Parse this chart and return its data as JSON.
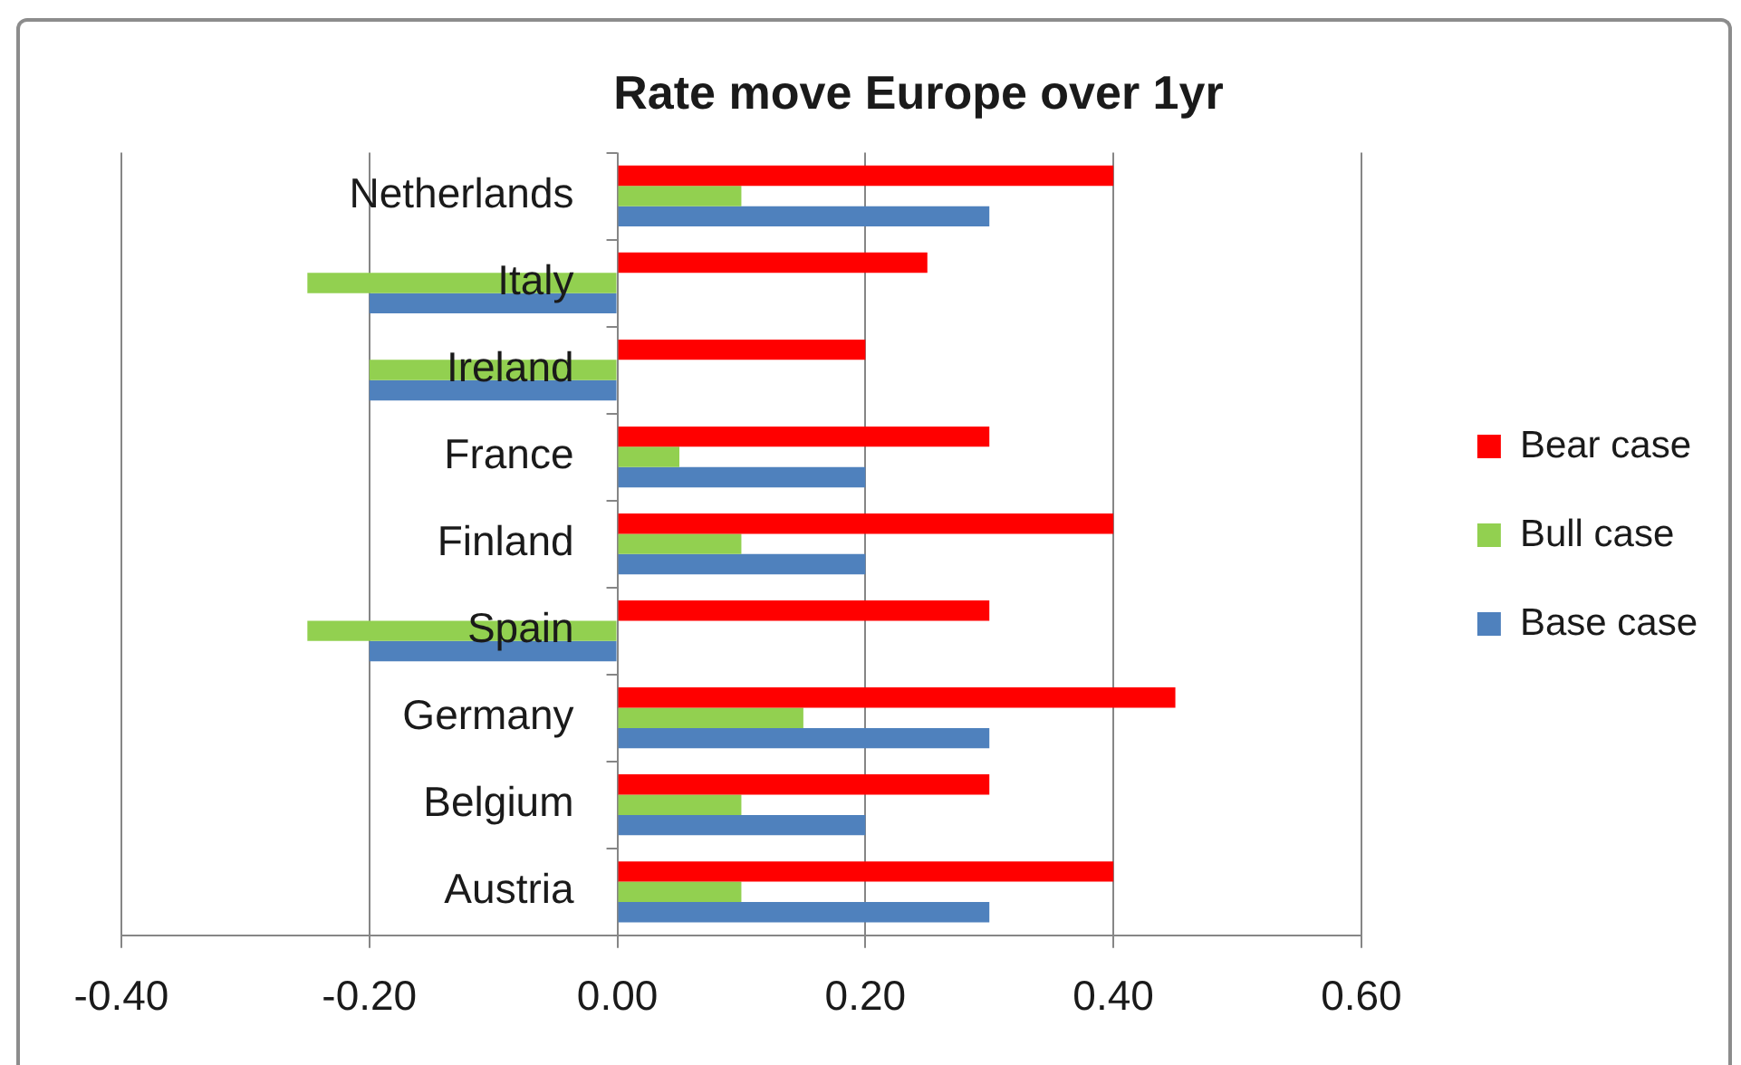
{
  "chart_data": {
    "type": "bar",
    "orientation": "horizontal",
    "title": "Rate move Europe over 1yr",
    "categories": [
      "Netherlands",
      "Italy",
      "Ireland",
      "France",
      "Finland",
      "Spain",
      "Germany",
      "Belgium",
      "Austria"
    ],
    "series": [
      {
        "name": "Bear case",
        "color": "#ff0000",
        "values": [
          0.4,
          0.25,
          0.2,
          0.3,
          0.4,
          0.3,
          0.45,
          0.3,
          0.4
        ]
      },
      {
        "name": "Bull case",
        "color": "#92d050",
        "values": [
          0.1,
          -0.25,
          -0.2,
          0.05,
          0.1,
          -0.25,
          0.15,
          0.1,
          0.1
        ]
      },
      {
        "name": "Base case",
        "color": "#4f81bd",
        "values": [
          0.3,
          -0.2,
          -0.2,
          0.2,
          0.2,
          -0.2,
          0.3,
          0.2,
          0.3
        ]
      }
    ],
    "xlim": [
      -0.4,
      0.6
    ],
    "xticks": [
      {
        "value": -0.4,
        "label": "-0.40"
      },
      {
        "value": -0.2,
        "label": "-0.20"
      },
      {
        "value": 0,
        "label": "0.00"
      },
      {
        "value": 0.2,
        "label": "0.20"
      },
      {
        "value": 0.4,
        "label": "0.40"
      },
      {
        "value": 0.6,
        "label": "0.60"
      }
    ],
    "grid": "x",
    "legend": "right"
  }
}
